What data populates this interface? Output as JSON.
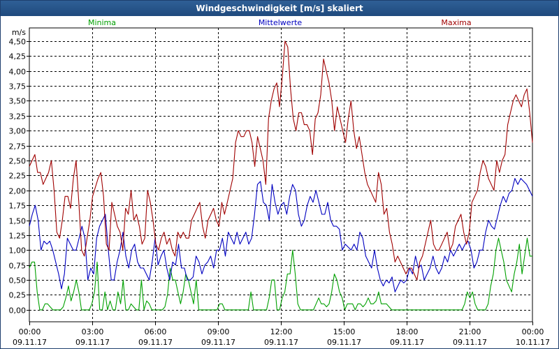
{
  "window": {
    "title": "Windgeschwindigkeit [m/s] skaliert"
  },
  "chart_data": {
    "type": "line",
    "title": "Windgeschwindigkeit [m/s] skaliert",
    "ylabel": "m/s",
    "ylim": [
      -0.2,
      4.72
    ],
    "xlim": [
      0,
      24
    ],
    "y_ticks": [
      "0,00",
      "0,25",
      "0,50",
      "0,75",
      "1,00",
      "1,25",
      "1,50",
      "1,75",
      "2,00",
      "2,25",
      "2,50",
      "2,75",
      "3,00",
      "3,25",
      "3,50",
      "3,75",
      "4,00",
      "4,25",
      "4,50"
    ],
    "x_ticks": [
      {
        "time": "00:00",
        "date": "09.11.17"
      },
      {
        "time": "03:00",
        "date": "09.11.17"
      },
      {
        "time": "06:00",
        "date": "09.11.17"
      },
      {
        "time": "09:00",
        "date": "09.11.17"
      },
      {
        "time": "12:00",
        "date": "09.11.17"
      },
      {
        "time": "15:00",
        "date": "09.11.17"
      },
      {
        "time": "18:00",
        "date": "09.11.17"
      },
      {
        "time": "21:00",
        "date": "09.11.17"
      },
      {
        "time": "00:00",
        "date": "10.11.17"
      }
    ],
    "series": [
      {
        "name": "Minima",
        "color": "#00a000",
        "values": [
          0.7,
          0.8,
          0.8,
          0.3,
          0,
          0,
          0.1,
          0.1,
          0.05,
          0,
          0,
          0,
          0,
          0.05,
          0.2,
          0.4,
          0.15,
          0.3,
          0.5,
          0.3,
          0,
          0,
          0,
          0,
          0.1,
          0.3,
          0.8,
          0,
          0,
          0.3,
          0,
          0.15,
          0,
          0,
          0.3,
          0.1,
          0.5,
          0,
          0,
          0.1,
          0.05,
          0,
          0,
          0.5,
          0,
          0.15,
          0.1,
          0,
          0,
          0,
          0,
          0,
          0.05,
          0.25,
          0.7,
          0.5,
          0.5,
          0.3,
          0.1,
          0.3,
          0.6,
          0.5,
          0.3,
          0.1,
          0.5,
          0,
          0,
          0,
          0,
          0,
          0,
          0,
          0,
          0.1,
          0.1,
          0,
          0,
          0,
          0,
          0,
          0,
          0,
          0,
          0,
          0,
          0.3,
          0,
          0,
          0,
          0,
          0,
          0,
          0.2,
          0.5,
          0.5,
          0,
          0,
          0.2,
          0.3,
          0.6,
          0.6,
          1.0,
          0.6,
          0.1,
          0,
          0,
          0,
          0,
          0,
          0,
          0.1,
          0.2,
          0.1,
          0.1,
          0.05,
          0.1,
          0.3,
          0.6,
          0.5,
          0.3,
          0.2,
          0,
          0.1,
          0.1,
          0.1,
          0,
          0.1,
          0.1,
          0.05,
          0.1,
          0.2,
          0.1,
          0.1,
          0.15,
          0.3,
          0.1,
          0.1,
          0.1,
          0.05,
          0,
          0,
          0,
          0,
          0,
          0,
          0,
          0,
          0,
          0,
          0,
          0,
          0,
          0,
          0,
          0,
          0,
          0,
          0,
          0,
          0,
          0,
          0,
          0,
          0,
          0,
          0,
          0,
          0.1,
          0.3,
          0.2,
          0.3,
          0.1,
          0,
          0,
          0,
          0,
          0.1,
          0.4,
          0.6,
          1.0,
          1.2,
          1.0,
          0.8,
          0.5,
          0.4,
          0.3,
          0.6,
          0.8,
          1.1,
          0.6,
          0.9,
          1.2,
          0.9,
          0.9
        ]
      },
      {
        "name": "Mittelwerte",
        "color": "#0000c0",
        "values": [
          1.4,
          1.6,
          1.75,
          1.5,
          1.0,
          1.15,
          1.1,
          1.15,
          1.0,
          0.8,
          0.6,
          0.35,
          0.6,
          1.2,
          1.1,
          1.0,
          1.0,
          1.2,
          1.4,
          1.2,
          0.5,
          0.7,
          0.6,
          1.2,
          1.4,
          1.5,
          1.6,
          1.0,
          0.5,
          0.5,
          0.8,
          1.0,
          1.3,
          0.9,
          0.7,
          1.0,
          1.1,
          0.8,
          0.7,
          0.7,
          0.6,
          0.5,
          0.8,
          1.2,
          0.75,
          0.9,
          1.0,
          0.7,
          0.5,
          0.8,
          0.75,
          1.1,
          0.7,
          0.7,
          0.5,
          0.5,
          0.55,
          0.9,
          0.8,
          0.6,
          0.75,
          0.8,
          0.9,
          0.7,
          1.0,
          1.0,
          1.2,
          0.9,
          1.3,
          1.2,
          1.1,
          1.3,
          1.1,
          1.2,
          1.3,
          1.1,
          1.2,
          1.6,
          2.1,
          2.15,
          1.8,
          1.75,
          1.5,
          2.1,
          1.8,
          1.6,
          1.75,
          1.8,
          1.6,
          1.9,
          2.1,
          2.0,
          1.6,
          1.4,
          1.5,
          1.75,
          1.9,
          1.8,
          2.0,
          1.8,
          1.6,
          1.6,
          1.8,
          1.5,
          1.4,
          1.4,
          1.35,
          1.0,
          1.1,
          1.05,
          1.0,
          1.1,
          1.0,
          1.3,
          1.2,
          0.9,
          0.8,
          0.7,
          1.0,
          0.7,
          0.5,
          0.4,
          0.5,
          0.45,
          0.55,
          0.3,
          0.4,
          0.5,
          0.45,
          0.5,
          0.7,
          0.6,
          0.9,
          0.7,
          0.75,
          0.5,
          0.6,
          0.7,
          0.9,
          0.7,
          0.6,
          0.7,
          0.9,
          0.8,
          1.0,
          0.9,
          1.0,
          1.1,
          1.0,
          1.1,
          1.15,
          1.0,
          0.7,
          0.8,
          1.0,
          1.0,
          1.3,
          1.5,
          1.4,
          1.35,
          1.55,
          1.75,
          1.9,
          1.8,
          1.95,
          2.0,
          2.2,
          2.1,
          2.2,
          2.15,
          2.1,
          2.0,
          1.9
        ]
      },
      {
        "name": "Maxima",
        "color": "#a00000",
        "values": [
          2.4,
          2.5,
          2.6,
          2.3,
          2.3,
          2.1,
          2.2,
          2.3,
          2.5,
          2.0,
          1.3,
          1.2,
          1.5,
          1.9,
          1.9,
          1.7,
          2.2,
          2.5,
          1.8,
          1.0,
          0.9,
          1.2,
          1.5,
          1.9,
          2.05,
          2.2,
          2.3,
          1.9,
          1.1,
          1.0,
          1.8,
          1.6,
          1.4,
          1.3,
          1.0,
          1.7,
          1.6,
          2.0,
          1.5,
          1.6,
          1.4,
          1.1,
          1.2,
          2.0,
          1.8,
          1.5,
          1.1,
          1.0,
          1.2,
          1.3,
          1.1,
          1.2,
          1.0,
          0.9,
          1.3,
          1.2,
          1.3,
          1.2,
          1.2,
          1.5,
          1.6,
          1.7,
          1.8,
          1.4,
          1.2,
          1.5,
          1.6,
          1.7,
          1.5,
          1.4,
          1.8,
          1.6,
          1.8,
          2.0,
          2.2,
          2.8,
          3.0,
          2.9,
          2.9,
          3.0,
          3.0,
          2.8,
          2.4,
          2.9,
          2.7,
          2.5,
          2.1,
          3.2,
          3.5,
          3.7,
          3.8,
          3.4,
          3.9,
          4.5,
          4.4,
          3.7,
          3.2,
          3.0,
          3.3,
          3.3,
          3.1,
          3.1,
          3.0,
          2.6,
          3.2,
          3.3,
          3.6,
          4.2,
          4.0,
          3.8,
          3.5,
          3.0,
          3.4,
          3.2,
          3.0,
          2.8,
          3.2,
          3.5,
          3.0,
          2.7,
          2.9,
          2.6,
          2.3,
          2.1,
          2.0,
          1.9,
          1.8,
          2.3,
          2.1,
          1.6,
          1.7,
          1.3,
          1.1,
          0.8,
          0.9,
          0.8,
          0.7,
          0.6,
          0.7,
          0.7,
          0.6,
          0.5,
          0.8,
          0.9,
          1.1,
          1.3,
          1.5,
          1.1,
          1.0,
          1.0,
          1.1,
          1.2,
          1.3,
          1.0,
          1.1,
          1.4,
          1.5,
          1.6,
          1.3,
          1.1,
          1.3,
          1.8,
          1.9,
          2.0,
          2.3,
          2.5,
          2.4,
          2.2,
          2.1,
          2.0,
          2.5,
          2.3,
          2.5,
          2.6,
          3.1,
          3.3,
          3.5,
          3.6,
          3.5,
          3.4,
          3.6,
          3.7,
          3.3,
          2.8
        ]
      }
    ]
  }
}
